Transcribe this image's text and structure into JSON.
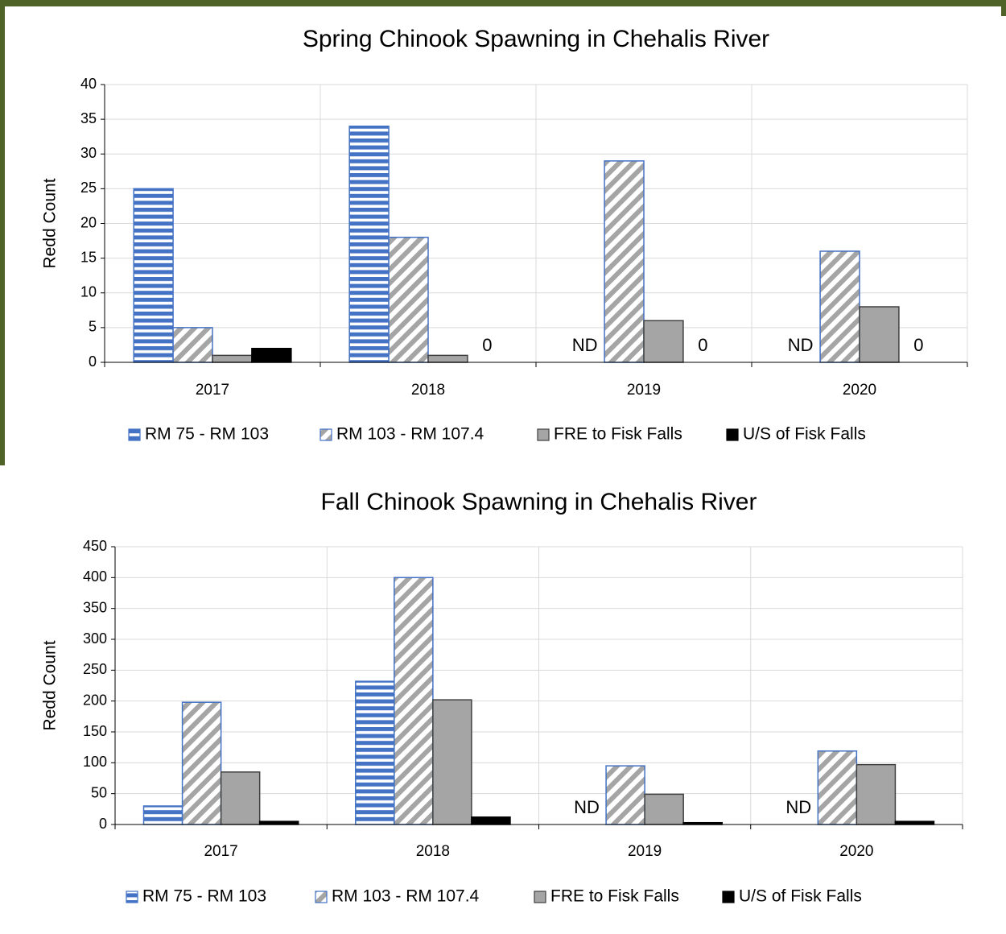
{
  "chart_data": [
    {
      "type": "bar",
      "title": "Spring Chinook Spawning in Chehalis River",
      "ylabel": "Redd Count",
      "categories": [
        "2017",
        "2018",
        "2019",
        "2020"
      ],
      "ylim": [
        0,
        40
      ],
      "yticks": [
        0,
        5,
        10,
        15,
        20,
        25,
        30,
        35,
        40
      ],
      "grid": true,
      "series": [
        {
          "name": "RM 75 - RM 103",
          "color": "#4472c4",
          "pattern": "horizontal",
          "values": [
            25,
            34,
            null,
            null
          ],
          "value_labels": [
            null,
            null,
            "ND",
            "ND"
          ]
        },
        {
          "name": "RM 103 - RM 107.4",
          "color": "#a5a5a5",
          "pattern": "diagonal",
          "values": [
            5,
            18,
            29,
            16
          ]
        },
        {
          "name": "FRE to Fisk Falls",
          "color": "#a5a5a5",
          "pattern": "solid",
          "values": [
            1,
            1,
            6,
            8
          ]
        },
        {
          "name": "U/S of Fisk Falls",
          "color": "#000000",
          "pattern": "solid",
          "values": [
            2,
            0,
            0,
            0
          ],
          "value_labels": [
            null,
            "0",
            "0",
            "0"
          ]
        }
      ]
    },
    {
      "type": "bar",
      "title": "Fall Chinook Spawning in Chehalis River",
      "ylabel": "Redd Count",
      "categories": [
        "2017",
        "2018",
        "2019",
        "2020"
      ],
      "ylim": [
        0,
        450
      ],
      "yticks": [
        0,
        50,
        100,
        150,
        200,
        250,
        300,
        350,
        400,
        450
      ],
      "grid": true,
      "series": [
        {
          "name": "RM 75 - RM 103",
          "color": "#4472c4",
          "pattern": "horizontal",
          "values": [
            30,
            232,
            null,
            null
          ],
          "value_labels": [
            null,
            null,
            "ND",
            "ND"
          ]
        },
        {
          "name": "RM 103 - RM 107.4",
          "color": "#a5a5a5",
          "pattern": "diagonal",
          "values": [
            198,
            400,
            95,
            119
          ]
        },
        {
          "name": "FRE to Fisk Falls",
          "color": "#a5a5a5",
          "pattern": "solid",
          "values": [
            85,
            202,
            49,
            97
          ]
        },
        {
          "name": "U/S of Fisk Falls",
          "color": "#000000",
          "pattern": "solid",
          "values": [
            5,
            12,
            3,
            5
          ]
        }
      ]
    }
  ]
}
